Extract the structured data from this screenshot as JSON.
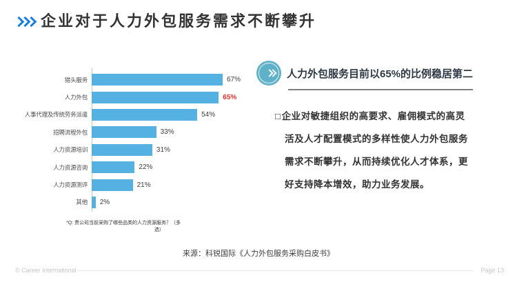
{
  "title": {
    "marker_icon": "triple-chevron-right",
    "text": "企业对于人力外包服务需求不断攀升"
  },
  "chart_data": {
    "type": "bar",
    "orientation": "horizontal",
    "categories": [
      "猎头服务",
      "人力外包",
      "人事代理及传统劳务派遣",
      "招聘流程外包",
      "人力资源培训",
      "人力资源咨询",
      "人力资源测评",
      "其他"
    ],
    "values": [
      67,
      65,
      54,
      33,
      31,
      22,
      21,
      2
    ],
    "unit": "%",
    "highlight_index": 1,
    "xlim": [
      0,
      70
    ],
    "grid": false,
    "legend": "none",
    "note_line1": "*Q: 贵公司当前采购了哪些品类的人力资源服务？（多",
    "note_line2": "选）"
  },
  "right_panel": {
    "icon": "double-chevron-circle",
    "headline": "人力外包服务目前以65%的比例稳居第二",
    "bullet": "□",
    "body_lines": [
      "企业对敏捷组织的高要求、雇佣模式的高灵",
      "活及人才配置模式的多样性使人力外包服务",
      "需求不断攀升，从而持续优化人才体系，更",
      "好支持降本增效，助力业务发展。"
    ]
  },
  "source": "来源：科锐国际《人力外包服务采购白皮书》",
  "footer": {
    "copyright": "© Career International",
    "page": "Page 13"
  },
  "colors": {
    "accent_blue": "#1a7ee0",
    "bar_blue": "#55b1e1",
    "highlight_red": "#e8302a",
    "icon_teal": "#5fb0c9",
    "title_dark": "#333333",
    "headline_dark": "#2d3845",
    "divider_gray": "#7f7f7f",
    "axis_gray": "#c4c4c4",
    "footer_gray": "#c6c6c6"
  }
}
